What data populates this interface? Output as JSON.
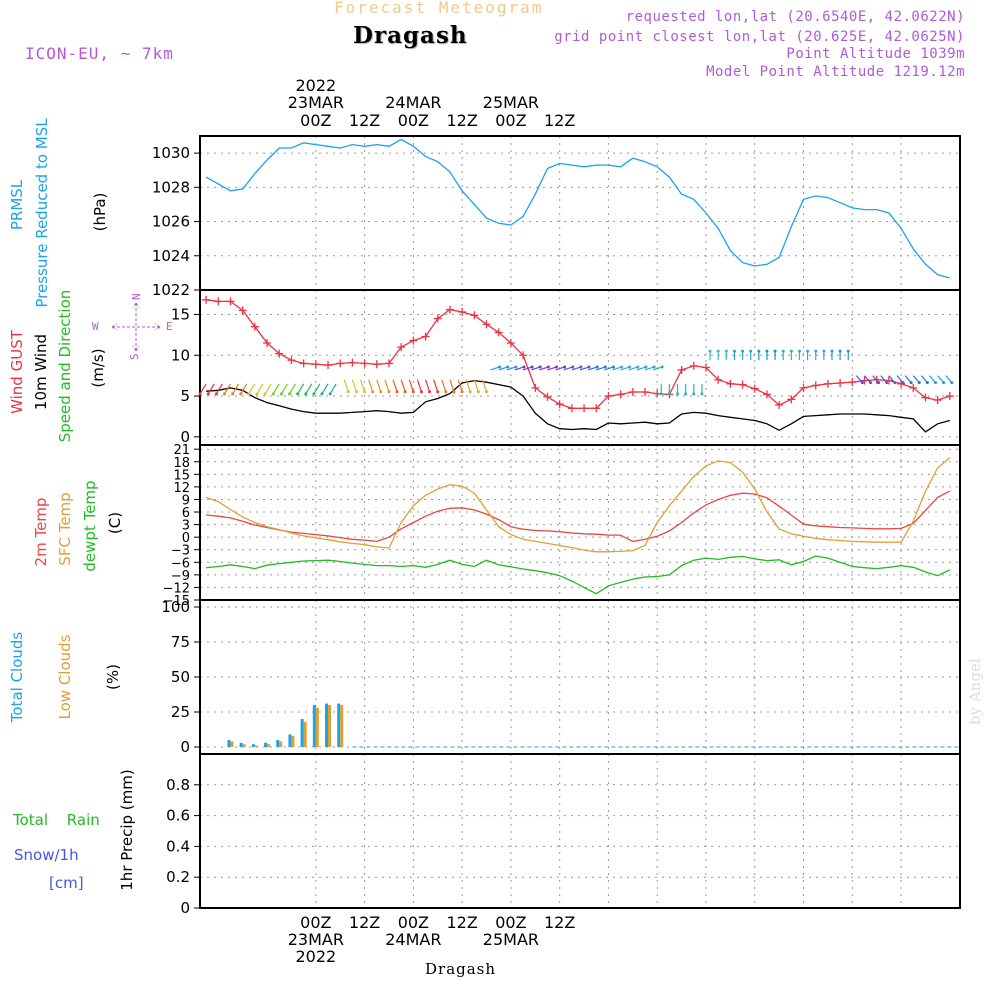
{
  "header": {
    "subtitle": "Forecast Meteogram",
    "title": "Dragash",
    "model": "ICON-EU, ~ 7km",
    "requested": "requested lon,lat (20.6540E, 42.0622N)",
    "grid_point": "grid point closest lon,lat (20.625E, 42.0625N)",
    "point_altitude": "Point Altitude 1039m",
    "model_altitude": "Model Point Altitude 1219.12m"
  },
  "footer": {
    "location": "Dragash",
    "watermark": "by Angel"
  },
  "top_axis": [
    {
      "l1": "2022",
      "l2": "23MAR",
      "l3": "00Z"
    },
    {
      "l1": "",
      "l2": "",
      "l3": "12Z"
    },
    {
      "l1": "",
      "l2": "24MAR",
      "l3": "00Z"
    },
    {
      "l1": "",
      "l2": "",
      "l3": "12Z"
    },
    {
      "l1": "",
      "l2": "25MAR",
      "l3": "00Z"
    },
    {
      "l1": "",
      "l2": "",
      "l3": "12Z"
    }
  ],
  "bottom_axis": [
    {
      "l1": "00Z",
      "l2": "23MAR",
      "l3": "2022"
    },
    {
      "l1": "12Z",
      "l2": "",
      "l3": ""
    },
    {
      "l1": "00Z",
      "l2": "24MAR",
      "l3": ""
    },
    {
      "l1": "12Z",
      "l2": "",
      "l3": ""
    },
    {
      "l1": "00Z",
      "l2": "25MAR",
      "l3": ""
    },
    {
      "l1": "12Z",
      "l2": "",
      "l3": ""
    }
  ],
  "colors": {
    "pressure": "#1aa3e8",
    "gust": "#ee3344",
    "wind": "#000000",
    "temp": "#ee4444",
    "sfc": "#e0a030",
    "dewpt": "#22bb22",
    "total_clouds": "#1aa3e8",
    "low_clouds": "#e0a030",
    "rain": "#22bb22",
    "snow": "#4455ee",
    "compass": "#b05bd4"
  },
  "side_labels": {
    "pressure": [
      "PRMSL",
      "Pressure Reduced to MSL",
      "(hPa)"
    ],
    "wind": [
      "Wind GUST",
      "10m Wind",
      "Speed and Direction",
      "(m/s)"
    ],
    "compass": {
      "w": "W",
      "e": "E",
      "n": "N",
      "s": "S"
    },
    "temp": [
      "2m Temp",
      "SFC Temp",
      "dewpt Temp",
      "(C)"
    ],
    "clouds": [
      "Total Clouds",
      "Low Clouds",
      "(%)"
    ],
    "precip": [
      "Total Rain",
      "Snow/1h",
      "[cm]",
      "1hr Precip (mm)"
    ]
  },
  "chart_data": [
    {
      "type": "line",
      "panel": "pressure",
      "ylabel": "(hPa)",
      "ylim": [
        1022,
        1031
      ],
      "yticks": [
        1022,
        1024,
        1026,
        1028,
        1030
      ],
      "x_hours": [
        -27,
        -24,
        -21,
        -18,
        -15,
        -12,
        -9,
        -6,
        -3,
        0,
        3,
        6,
        9,
        12,
        15,
        18,
        21,
        24,
        27,
        30,
        33,
        36,
        39,
        42,
        45,
        48,
        51,
        54,
        57,
        60,
        63,
        66,
        69,
        72,
        75,
        78,
        81,
        84,
        87,
        90,
        93,
        96,
        99,
        102,
        105,
        108,
        111,
        114,
        117,
        120,
        123,
        126,
        129,
        132,
        135,
        138,
        141,
        144,
        147,
        150,
        153,
        156
      ],
      "series": [
        {
          "name": "PRMSL",
          "values": [
            1028.6,
            1028.2,
            1027.8,
            1027.9,
            1028.8,
            1029.6,
            1030.3,
            1030.3,
            1030.6,
            1030.5,
            1030.4,
            1030.3,
            1030.5,
            1030.4,
            1030.5,
            1030.4,
            1030.8,
            1030.4,
            1029.8,
            1029.5,
            1028.9,
            1027.8,
            1027.0,
            1026.2,
            1025.9,
            1025.8,
            1026.3,
            1027.6,
            1029.1,
            1029.4,
            1029.3,
            1029.2,
            1029.3,
            1029.3,
            1029.2,
            1029.7,
            1029.5,
            1029.2,
            1028.6,
            1027.6,
            1027.3,
            1026.5,
            1025.6,
            1024.3,
            1023.6,
            1023.4,
            1023.5,
            1023.9,
            1025.7,
            1027.3,
            1027.5,
            1027.4,
            1027.1,
            1026.8,
            1026.7,
            1026.7,
            1026.5,
            1025.6,
            1024.4,
            1023.5,
            1022.9,
            1022.7
          ]
        }
      ]
    },
    {
      "type": "line",
      "panel": "wind",
      "ylabel": "(m/s)",
      "ylim": [
        -1,
        18
      ],
      "yticks": [
        0,
        5,
        10,
        15
      ],
      "x_hours": [
        -27,
        -24,
        -21,
        -18,
        -15,
        -12,
        -9,
        -6,
        -3,
        0,
        3,
        6,
        9,
        12,
        15,
        18,
        21,
        24,
        27,
        30,
        33,
        36,
        39,
        42,
        45,
        48,
        51,
        54,
        57,
        60,
        63,
        66,
        69,
        72,
        75,
        78,
        81,
        84,
        87,
        90,
        93,
        96,
        99,
        102,
        105,
        108,
        111,
        114,
        117,
        120,
        123,
        126,
        129,
        132,
        135,
        138,
        141,
        144,
        147,
        150,
        153,
        156
      ],
      "series": [
        {
          "name": "Wind GUST",
          "values": [
            16.8,
            16.6,
            16.6,
            15.5,
            13.5,
            11.5,
            10.2,
            9.4,
            9.0,
            8.9,
            8.8,
            9.0,
            9.1,
            9.0,
            8.9,
            9.0,
            11.0,
            11.8,
            12.3,
            14.5,
            15.6,
            15.3,
            14.9,
            13.8,
            12.8,
            11.5,
            10.0,
            6.0,
            4.9,
            4.0,
            3.5,
            3.5,
            3.5,
            5.0,
            5.2,
            5.5,
            5.5,
            5.3,
            5.2,
            8.2,
            8.7,
            8.5,
            7.0,
            6.5,
            6.4,
            5.9,
            5.2,
            3.9,
            4.6,
            6.0,
            6.3,
            6.5,
            6.6,
            6.7,
            6.9,
            7.0,
            6.9,
            6.5,
            6.0,
            4.8,
            4.5,
            5.0
          ]
        },
        {
          "name": "10m Wind",
          "values": [
            5.6,
            5.7,
            6.0,
            5.7,
            4.8,
            4.2,
            3.8,
            3.4,
            3.1,
            2.9,
            2.9,
            2.9,
            3.0,
            3.1,
            3.2,
            3.1,
            2.9,
            3.0,
            4.3,
            4.7,
            5.3,
            6.6,
            6.9,
            6.7,
            6.4,
            6.1,
            5.0,
            2.9,
            1.6,
            1.0,
            0.9,
            1.0,
            0.9,
            1.7,
            1.6,
            1.7,
            1.8,
            1.6,
            1.7,
            2.8,
            3.0,
            2.9,
            2.6,
            2.4,
            2.2,
            2.0,
            1.6,
            0.8,
            1.6,
            2.5,
            2.6,
            2.7,
            2.8,
            2.8,
            2.8,
            2.7,
            2.6,
            2.4,
            2.2,
            0.6,
            1.6,
            2.0
          ]
        }
      ]
    },
    {
      "type": "line",
      "panel": "temperature",
      "ylabel": "(C)",
      "ylim": [
        -15,
        22
      ],
      "yticks": [
        -15,
        -12,
        -9,
        -6,
        -3,
        0,
        3,
        6,
        9,
        12,
        15,
        18,
        21
      ],
      "x_hours": [
        -27,
        -24,
        -21,
        -18,
        -15,
        -12,
        -9,
        -6,
        -3,
        0,
        3,
        6,
        9,
        12,
        15,
        18,
        21,
        24,
        27,
        30,
        33,
        36,
        39,
        42,
        45,
        48,
        51,
        54,
        57,
        60,
        63,
        66,
        69,
        72,
        75,
        78,
        81,
        84,
        87,
        90,
        93,
        96,
        99,
        102,
        105,
        108,
        111,
        114,
        117,
        120,
        123,
        126,
        129,
        132,
        135,
        138,
        141,
        144,
        147,
        150,
        153,
        156
      ],
      "series": [
        {
          "name": "2m Temp",
          "values": [
            5.3,
            5.0,
            4.6,
            3.8,
            2.9,
            2.3,
            1.7,
            1.2,
            0.9,
            0.6,
            0.3,
            -0.1,
            -0.5,
            -0.7,
            -1.0,
            0.0,
            2.0,
            3.5,
            5.0,
            6.2,
            6.9,
            7.0,
            6.5,
            5.5,
            4.2,
            2.5,
            1.9,
            1.6,
            1.5,
            1.3,
            1.0,
            0.8,
            0.7,
            0.5,
            0.5,
            -1.0,
            -0.5,
            0.2,
            1.5,
            3.5,
            5.8,
            7.7,
            9.0,
            10.0,
            10.5,
            10.3,
            9.4,
            7.4,
            5.3,
            3.1,
            2.7,
            2.5,
            2.3,
            2.2,
            2.1,
            2.0,
            2.0,
            2.1,
            3.3,
            6.4,
            9.5,
            11.0
          ]
        },
        {
          "name": "SFC Temp",
          "values": [
            9.5,
            8.5,
            6.6,
            4.8,
            3.5,
            2.5,
            1.8,
            1.0,
            0.3,
            -0.2,
            -0.6,
            -1.1,
            -1.5,
            -1.8,
            -2.3,
            -2.6,
            3.5,
            7.5,
            10.0,
            11.5,
            12.5,
            12.2,
            10.5,
            6.5,
            2.5,
            0.6,
            -0.5,
            -1.0,
            -1.5,
            -2.0,
            -2.5,
            -3.1,
            -3.5,
            -3.5,
            -3.4,
            -3.2,
            -2.0,
            3.5,
            7.5,
            11.0,
            14.5,
            17.0,
            18.2,
            17.8,
            15.5,
            11.5,
            6.0,
            2.0,
            0.8,
            0.2,
            -0.3,
            -0.6,
            -0.8,
            -1.0,
            -1.1,
            -1.2,
            -1.2,
            -1.2,
            3.8,
            11.0,
            16.5,
            19.0
          ]
        },
        {
          "name": "dewpt Temp",
          "values": [
            -7.3,
            -7.0,
            -6.6,
            -7.0,
            -7.5,
            -6.7,
            -6.3,
            -6.0,
            -5.7,
            -5.6,
            -5.5,
            -5.8,
            -6.2,
            -6.5,
            -6.8,
            -6.8,
            -7.0,
            -6.8,
            -7.2,
            -6.5,
            -5.5,
            -6.5,
            -7.0,
            -5.5,
            -6.6,
            -7.1,
            -7.6,
            -8.0,
            -8.5,
            -9.2,
            -10.5,
            -12.0,
            -13.5,
            -11.6,
            -10.8,
            -10.0,
            -9.5,
            -9.4,
            -9.0,
            -6.8,
            -5.5,
            -5.0,
            -5.3,
            -4.8,
            -4.6,
            -5.2,
            -5.6,
            -5.4,
            -6.6,
            -5.8,
            -4.5,
            -5.0,
            -6.0,
            -7.0,
            -7.3,
            -7.5,
            -7.2,
            -6.8,
            -7.2,
            -8.3,
            -9.2,
            -7.8
          ]
        }
      ]
    },
    {
      "type": "bar",
      "panel": "clouds",
      "ylabel": "(%)",
      "ylim": [
        -5,
        105
      ],
      "yticks": [
        0,
        25,
        50,
        75,
        100
      ],
      "x_hours": [
        -21,
        -18,
        -15,
        -12,
        -9,
        -6,
        -3,
        0,
        3,
        6
      ],
      "series": [
        {
          "name": "Total Clouds",
          "values": [
            5,
            3,
            2,
            3,
            5,
            9,
            20,
            30,
            31,
            31
          ]
        },
        {
          "name": "Low Clouds",
          "values": [
            4,
            2,
            1,
            2,
            4,
            8,
            18,
            28,
            30,
            30
          ]
        }
      ]
    },
    {
      "type": "line",
      "panel": "precip",
      "ylabel": "1hr Precip (mm)",
      "ylim": [
        0,
        1.0
      ],
      "yticks": [
        0,
        0.2,
        0.4,
        0.6,
        0.8
      ],
      "x_hours": [
        -27,
        156
      ],
      "series": [
        {
          "name": "Total Rain",
          "values": [
            0,
            0
          ]
        }
      ]
    }
  ]
}
